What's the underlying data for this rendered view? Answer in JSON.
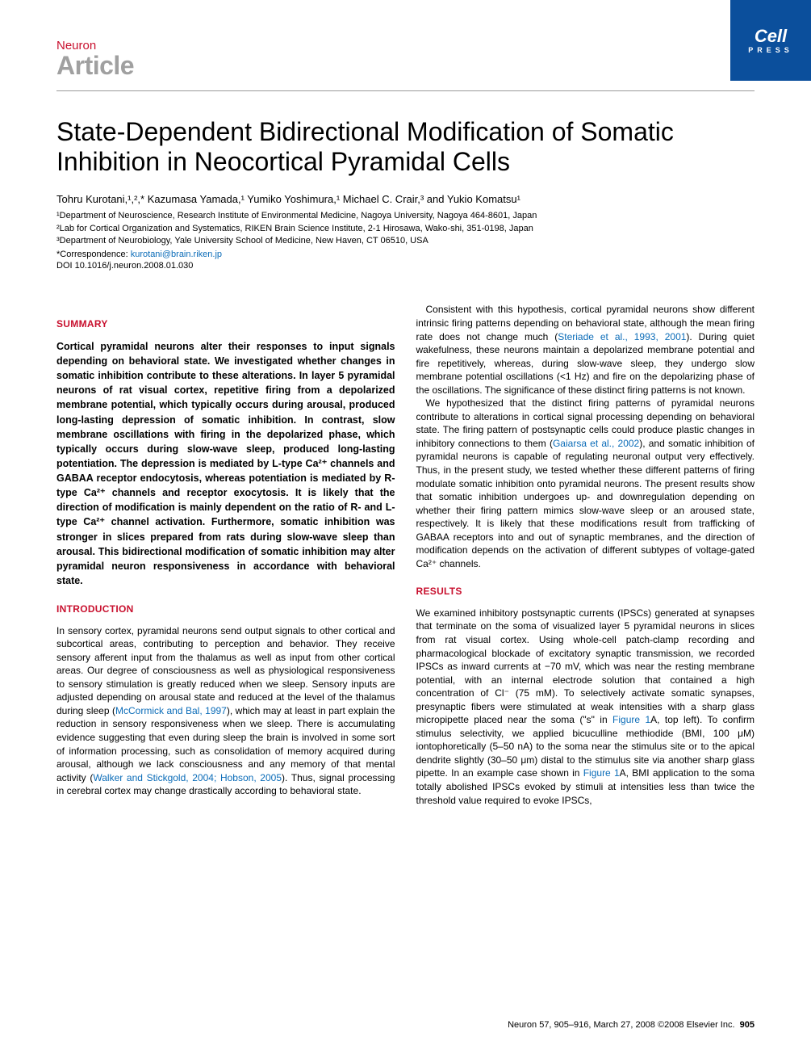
{
  "colors": {
    "brand_red": "#c8102e",
    "link_blue": "#0b6cb8",
    "logo_blue": "#0b4f9c",
    "gray_heading": "#a0a0a0",
    "divider": "#999999",
    "text": "#000000",
    "bg": "#ffffff"
  },
  "typography": {
    "title_fontsize": 32,
    "authors_fontsize": 13,
    "affil_fontsize": 11,
    "body_fontsize": 12,
    "section_head_fontsize": 12,
    "footer_fontsize": 11
  },
  "header": {
    "journal": "Neuron",
    "article_type": "Article",
    "logo_main": "Cell",
    "logo_sub": "PRESS"
  },
  "title": "State-Dependent Bidirectional Modification of Somatic Inhibition in Neocortical Pyramidal Cells",
  "authors_line": "Tohru Kurotani,¹,²,* Kazumasa Yamada,¹ Yumiko Yoshimura,¹ Michael C. Crair,³ and Yukio Komatsu¹",
  "affiliations": [
    "¹Department of Neuroscience, Research Institute of Environmental Medicine, Nagoya University, Nagoya 464-8601, Japan",
    "²Lab for Cortical Organization and Systematics, RIKEN Brain Science Institute, 2-1 Hirosawa, Wako-shi, 351-0198, Japan",
    "³Department of Neurobiology, Yale University School of Medicine, New Haven, CT 06510, USA"
  ],
  "correspondence_label": "*Correspondence: ",
  "correspondence_email": "kurotani@brain.riken.jp",
  "doi": "DOI 10.1016/j.neuron.2008.01.030",
  "sections": {
    "summary_head": "SUMMARY",
    "summary_text": "Cortical pyramidal neurons alter their responses to input signals depending on behavioral state. We investigated whether changes in somatic inhibition contribute to these alterations. In layer 5 pyramidal neurons of rat visual cortex, repetitive firing from a depolarized membrane potential, which typically occurs during arousal, produced long-lasting depression of somatic inhibition. In contrast, slow membrane oscillations with firing in the depolarized phase, which typically occurs during slow-wave sleep, produced long-lasting potentiation. The depression is mediated by L-type Ca²⁺ channels and GABAA receptor endocytosis, whereas potentiation is mediated by R-type Ca²⁺ channels and receptor exocytosis. It is likely that the direction of modification is mainly dependent on the ratio of R- and L-type Ca²⁺ channel activation. Furthermore, somatic inhibition was stronger in slices prepared from rats during slow-wave sleep than arousal. This bidirectional modification of somatic inhibition may alter pyramidal neuron responsiveness in accordance with behavioral state.",
    "intro_head": "INTRODUCTION",
    "intro_p1": "In sensory cortex, pyramidal neurons send output signals to other cortical and subcortical areas, contributing to perception and behavior. They receive sensory afferent input from the thalamus as well as input from other cortical areas. Our degree of consciousness as well as physiological responsiveness to sensory stimulation is greatly reduced when we sleep. Sensory inputs are adjusted depending on arousal state and reduced at the level of the thalamus during sleep (",
    "intro_ref1": "McCormick and Bal, 1997",
    "intro_p1b": "), which may at least in part explain the reduction in sensory responsiveness when we sleep. There is accumulating evidence suggesting that even during sleep the brain is involved in some sort of information processing, such as consolidation of memory acquired during arousal, although we lack consciousness and any memory of that mental activity (",
    "intro_ref2": "Walker and Stickgold, 2004; Hobson, 2005",
    "intro_p1c": "). Thus, signal processing in cerebral cortex may change drastically according to behavioral state.",
    "col2_p1a": "Consistent with this hypothesis, cortical pyramidal neurons show different intrinsic firing patterns depending on behavioral state, although the mean firing rate does not change much (",
    "col2_ref1": "Steriade et al., 1993, 2001",
    "col2_p1b": "). During quiet wakefulness, these neurons maintain a depolarized membrane potential and fire repetitively, whereas, during slow-wave sleep, they undergo slow membrane potential oscillations (<1 Hz) and fire on the depolarizing phase of the oscillations. The significance of these distinct firing patterns is not known.",
    "col2_p2a": "We hypothesized that the distinct firing patterns of pyramidal neurons contribute to alterations in cortical signal processing depending on behavioral state. The firing pattern of postsynaptic cells could produce plastic changes in inhibitory connections to them (",
    "col2_ref2": "Gaiarsa et al., 2002",
    "col2_p2b": "), and somatic inhibition of pyramidal neurons is capable of regulating neuronal output very effectively. Thus, in the present study, we tested whether these different patterns of firing modulate somatic inhibition onto pyramidal neurons. The present results show that somatic inhibition undergoes up- and downregulation depending on whether their firing pattern mimics slow-wave sleep or an aroused state, respectively. It is likely that these modifications result from trafficking of GABAA receptors into and out of synaptic membranes, and the direction of modification depends on the activation of different subtypes of voltage-gated Ca²⁺ channels.",
    "results_head": "RESULTS",
    "results_p1a": "We examined inhibitory postsynaptic currents (IPSCs) generated at synapses that terminate on the soma of visualized layer 5 pyramidal neurons in slices from rat visual cortex. Using whole-cell patch-clamp recording and pharmacological blockade of excitatory synaptic transmission, we recorded IPSCs as inward currents at −70 mV, which was near the resting membrane potential, with an internal electrode solution that contained a high concentration of Cl⁻ (75 mM). To selectively activate somatic synapses, presynaptic fibers were stimulated at weak intensities with a sharp glass micropipette placed near the soma (\"s\" in ",
    "results_ref1": "Figure 1",
    "results_p1b": "A, top left). To confirm stimulus selectivity, we applied bicuculline methiodide (BMI, 100 μM) iontophoretically (5–50 nA) to the soma near the stimulus site or to the apical dendrite slightly (30–50 μm) distal to the stimulus site via another sharp glass pipette. In an example case shown in ",
    "results_ref2": "Figure 1",
    "results_p1c": "A, BMI application to the soma totally abolished IPSCs evoked by stimuli at intensities less than twice the threshold value required to evoke IPSCs,"
  },
  "footer": {
    "citation": "Neuron 57, 905–916, March 27, 2008 ©2008 Elsevier Inc.",
    "page": "905"
  }
}
